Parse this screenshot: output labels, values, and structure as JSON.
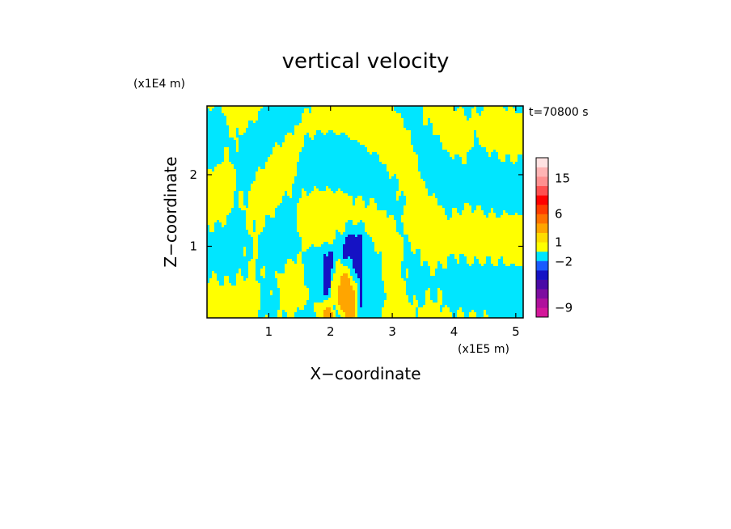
{
  "chart_data": {
    "type": "heatmap",
    "title": "vertical velocity",
    "xlabel": "X−coordinate",
    "ylabel": "Z−coordinate",
    "x_scale_label": "(x1E5 m)",
    "y_scale_label": "(x1E4 m)",
    "time_label": "t=70800 s",
    "xlim": [
      0,
      5.12
    ],
    "ylim": [
      0,
      2.96
    ],
    "x_ticks": [
      {
        "value": 1,
        "label": "1"
      },
      {
        "value": 2,
        "label": "2"
      },
      {
        "value": 3,
        "label": "3"
      },
      {
        "value": 4,
        "label": "4"
      },
      {
        "value": 5,
        "label": "5"
      }
    ],
    "y_ticks": [
      {
        "value": 1,
        "label": "1"
      },
      {
        "value": 2,
        "label": "2"
      }
    ],
    "colorbar": {
      "bins": [
        {
          "color": "#d4179a"
        },
        {
          "color": "#b0109c"
        },
        {
          "color": "#7d0da0"
        },
        {
          "color": "#4a0aa6"
        },
        {
          "color": "#1512c4"
        },
        {
          "color": "#1a5aff"
        },
        {
          "color": "#00e6ff"
        },
        {
          "color": "#ffff00"
        },
        {
          "color": "#ffdc00"
        },
        {
          "color": "#ffa500"
        },
        {
          "color": "#ff7200"
        },
        {
          "color": "#ff3c00"
        },
        {
          "color": "#ff0000"
        },
        {
          "color": "#ff5050"
        },
        {
          "color": "#ff9090"
        },
        {
          "color": "#ffb4b4"
        },
        {
          "color": "#ffe2e2"
        }
      ],
      "labels": [
        {
          "text": "15",
          "bin": 14.8
        },
        {
          "text": "6",
          "bin": 11.0
        },
        {
          "text": "1",
          "bin": 8.0
        },
        {
          "text": "−2",
          "bin": 5.9
        },
        {
          "text": "−9",
          "bin": 1.0
        }
      ]
    },
    "colors": {
      "positive": "#ffff00",
      "negative": "#00e6ff",
      "strong_negative": "#1512c4",
      "strong_positive": "#ffa500",
      "frame": "#000000"
    }
  }
}
